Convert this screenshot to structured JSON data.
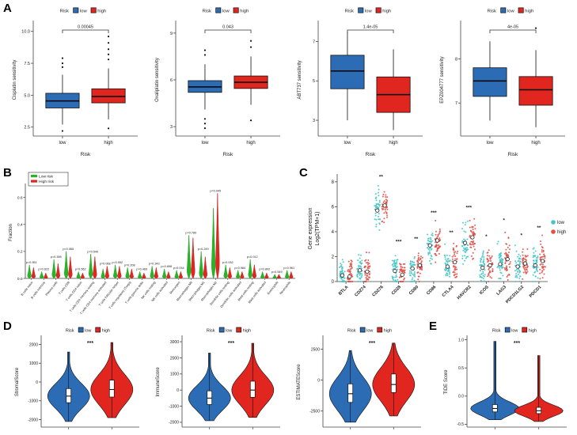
{
  "panels": {
    "a": "A",
    "b": "B",
    "c": "C",
    "d": "D",
    "e": "E"
  },
  "colors": {
    "blue": "#2c6cb5",
    "red": "#e0261f",
    "green": "#27b427",
    "teal": "#45c5c9",
    "red_pts": "#e05148"
  },
  "chart_data": [
    {
      "id": "cisplatin",
      "panel": "A",
      "type": "box",
      "legend_title": "Risk",
      "legend": [
        "low",
        "high"
      ],
      "ylabel": "Cisplatin sensitivity",
      "xlabel": "Risk",
      "pvalue": "0.00045",
      "ylim": [
        1.8,
        10.6
      ],
      "yticks": [
        2.5,
        5.0,
        7.5,
        10.0
      ],
      "ytick_labels": [
        "2.5",
        "5.0",
        "7.5",
        "10.0"
      ],
      "series": [
        {
          "name": "low",
          "q1": 4.0,
          "median": 4.55,
          "q3": 5.15,
          "whisker_low": 2.7,
          "whisker_high": 6.6,
          "outliers": [
            7.2,
            7.5,
            7.9,
            2.2
          ]
        },
        {
          "name": "high",
          "q1": 4.4,
          "median": 4.9,
          "q3": 5.5,
          "whisker_low": 3.1,
          "whisker_high": 7.1,
          "outliers": [
            7.8,
            8.2,
            8.6,
            9.1,
            9.6,
            2.4
          ]
        }
      ]
    },
    {
      "id": "oxaliplatin",
      "panel": "A",
      "type": "box",
      "legend_title": "Risk",
      "legend": [
        "low",
        "high"
      ],
      "ylabel": "Oxaliplatin sensitivity",
      "xlabel": "Risk",
      "pvalue": "0.043",
      "ylim": [
        2.4,
        9.6
      ],
      "yticks": [
        3,
        6,
        9
      ],
      "ytick_labels": [
        "3",
        "6",
        "9"
      ],
      "series": [
        {
          "name": "low",
          "q1": 5.2,
          "median": 5.55,
          "q3": 5.95,
          "whisker_low": 4.1,
          "whisker_high": 7.0,
          "outliers": [
            7.6,
            7.9,
            3.5,
            3.2,
            2.9
          ]
        },
        {
          "name": "high",
          "q1": 5.45,
          "median": 5.85,
          "q3": 6.25,
          "whisker_low": 4.4,
          "whisker_high": 7.5,
          "outliers": [
            8.1,
            8.5,
            3.4
          ]
        }
      ]
    },
    {
      "id": "abt737",
      "panel": "A",
      "type": "box",
      "legend_title": "Risk",
      "legend": [
        "low",
        "high"
      ],
      "ylabel": "ABT737 sensitivity",
      "xlabel": "Risk",
      "pvalue": "1.4e-05",
      "ylim": [
        2.2,
        7.9
      ],
      "yticks": [
        3,
        5,
        7
      ],
      "ytick_labels": [
        "3",
        "5",
        "7"
      ],
      "series": [
        {
          "name": "low",
          "q1": 4.6,
          "median": 5.5,
          "q3": 6.3,
          "whisker_low": 3.0,
          "whisker_high": 7.5,
          "outliers": []
        },
        {
          "name": "high",
          "q1": 3.4,
          "median": 4.3,
          "q3": 5.2,
          "whisker_low": 2.5,
          "whisker_high": 6.6,
          "outliers": []
        }
      ]
    },
    {
      "id": "epz004777",
      "panel": "A",
      "type": "box",
      "legend_title": "Risk",
      "legend": [
        "low",
        "high"
      ],
      "ylabel": "EPZ004777 sensitivity",
      "xlabel": "Risk",
      "pvalue": "4e-05",
      "ylim": [
        6.25,
        8.8
      ],
      "yticks": [
        7,
        8
      ],
      "ytick_labels": [
        "7",
        "8"
      ],
      "series": [
        {
          "name": "low",
          "q1": 7.15,
          "median": 7.5,
          "q3": 7.8,
          "whisker_low": 6.6,
          "whisker_high": 8.4,
          "outliers": []
        },
        {
          "name": "high",
          "q1": 6.95,
          "median": 7.3,
          "q3": 7.6,
          "whisker_low": 6.45,
          "whisker_high": 8.2,
          "outliers": [
            8.7
          ]
        }
      ]
    },
    {
      "id": "cibersort",
      "panel": "B",
      "type": "violin",
      "legend": [
        "Low risk",
        "High risk"
      ],
      "ylabel": "Fraction",
      "ylim": [
        0,
        0.68
      ],
      "yticks": [
        0,
        0.2,
        0.4,
        0.6
      ],
      "ytick_labels": [
        "0.0",
        "0.2",
        "0.4",
        "0.6"
      ],
      "categories": [
        "B cells naive",
        "B cells memory",
        "Plasma cells",
        "T cells CD8",
        "T cells CD4 naive",
        "T cells CD4 memory resting",
        "T cells CD4 memory activated",
        "T cells follicular helper",
        "T cells regulatory (Tregs)",
        "T cells gamma delta",
        "NK cells resting",
        "NK cells activated",
        "Monocytes",
        "Macrophages M0",
        "Macrophages M1",
        "Macrophages M2",
        "Dendritic cells resting",
        "Dendritic cells activated",
        "Mast cells resting",
        "Mast cells activated",
        "Eosinophils",
        "Neutrophils"
      ],
      "low_max": [
        0.1,
        0.05,
        0.14,
        0.2,
        0.05,
        0.18,
        0.07,
        0.1,
        0.08,
        0.05,
        0.09,
        0.07,
        0.06,
        0.32,
        0.2,
        0.52,
        0.1,
        0.06,
        0.14,
        0.05,
        0.03,
        0.06
      ],
      "high_max": [
        0.08,
        0.04,
        0.11,
        0.16,
        0.04,
        0.16,
        0.09,
        0.09,
        0.07,
        0.04,
        0.08,
        0.05,
        0.05,
        0.3,
        0.16,
        0.63,
        0.08,
        0.05,
        0.1,
        0.04,
        0.03,
        0.05
      ],
      "pvalues": [
        "p=0.951",
        "p=0.622",
        "p=0.398",
        "p=0.065",
        "p=0.562",
        "p=0.540",
        "p=0.068",
        "p=0.552",
        "p=0.208",
        "p=0.469",
        "p=0.343",
        "p=0.698",
        "p=0.034",
        "p=0.789",
        "p=0.249",
        "p=0.045",
        "p=0.032",
        "p=0.984",
        "p=0.012",
        "p=0.802",
        "p=0.549",
        "p=0.961"
      ]
    },
    {
      "id": "checkpoint",
      "panel": "C",
      "type": "scatter",
      "legend": [
        "low",
        "high"
      ],
      "ylabel_line1": "Gene expression",
      "ylabel_line2": "Log2(TPM+1)",
      "ylim": [
        0,
        8.5
      ],
      "yticks": [
        0,
        2,
        4,
        6,
        8
      ],
      "ytick_labels": [
        "0",
        "2",
        "4",
        "6",
        "8"
      ],
      "genes": [
        {
          "name": "BTLA",
          "sig": "",
          "low": {
            "median": 0.5,
            "sd": 0.6,
            "min": 0,
            "max": 2.6
          },
          "high": {
            "median": 0.4,
            "sd": 0.55,
            "min": 0,
            "max": 2.3
          }
        },
        {
          "name": "CD274",
          "sig": "",
          "low": {
            "median": 0.9,
            "sd": 0.6,
            "min": 0,
            "max": 3.0
          },
          "high": {
            "median": 0.8,
            "sd": 0.6,
            "min": 0,
            "max": 2.8
          }
        },
        {
          "name": "CD276",
          "sig": "**",
          "low": {
            "median": 5.7,
            "sd": 0.75,
            "min": 3.6,
            "max": 7.9
          },
          "high": {
            "median": 6.1,
            "sd": 0.7,
            "min": 4.2,
            "max": 8.1
          }
        },
        {
          "name": "CD28",
          "sig": "***",
          "low": {
            "median": 0.85,
            "sd": 0.6,
            "min": 0,
            "max": 2.9
          },
          "high": {
            "median": 0.55,
            "sd": 0.5,
            "min": 0,
            "max": 2.4
          }
        },
        {
          "name": "CD80",
          "sig": "**",
          "low": {
            "median": 1.05,
            "sd": 0.55,
            "min": 0,
            "max": 2.8
          },
          "high": {
            "median": 1.3,
            "sd": 0.6,
            "min": 0,
            "max": 3.1
          }
        },
        {
          "name": "CD86",
          "sig": "***",
          "low": {
            "median": 2.9,
            "sd": 0.7,
            "min": 1.0,
            "max": 4.9
          },
          "high": {
            "median": 3.3,
            "sd": 0.7,
            "min": 1.4,
            "max": 5.2
          }
        },
        {
          "name": "CTLA4",
          "sig": "**",
          "low": {
            "median": 1.2,
            "sd": 0.6,
            "min": 0,
            "max": 3.2
          },
          "high": {
            "median": 1.55,
            "sd": 0.65,
            "min": 0,
            "max": 3.6
          }
        },
        {
          "name": "HAVCR2",
          "sig": "***",
          "low": {
            "median": 3.1,
            "sd": 0.7,
            "min": 1.4,
            "max": 5.2
          },
          "high": {
            "median": 3.55,
            "sd": 0.7,
            "min": 1.8,
            "max": 5.6
          }
        },
        {
          "name": "ICOS",
          "sig": "*",
          "low": {
            "median": 1.1,
            "sd": 0.6,
            "min": 0,
            "max": 3.1
          },
          "high": {
            "median": 1.3,
            "sd": 0.6,
            "min": 0,
            "max": 3.3
          }
        },
        {
          "name": "LAG3",
          "sig": "*",
          "low": {
            "median": 1.4,
            "sd": 0.8,
            "min": 0,
            "max": 4.2
          },
          "high": {
            "median": 1.8,
            "sd": 0.85,
            "min": 0,
            "max": 4.6
          }
        },
        {
          "name": "PDCD1LG2",
          "sig": "*",
          "low": {
            "median": 1.2,
            "sd": 0.6,
            "min": 0,
            "max": 3.2
          },
          "high": {
            "median": 1.45,
            "sd": 0.6,
            "min": 0,
            "max": 3.4
          }
        },
        {
          "name": "PDCD1",
          "sig": "**",
          "low": {
            "median": 1.3,
            "sd": 0.7,
            "min": 0,
            "max": 3.7
          },
          "high": {
            "median": 1.65,
            "sd": 0.7,
            "min": 0,
            "max": 4.0
          }
        }
      ]
    },
    {
      "id": "stromal",
      "panel": "D",
      "type": "violin-box",
      "legend_title": "Risk",
      "legend": [
        "low",
        "high"
      ],
      "ylabel": "StromalScore",
      "sig": "***",
      "ylim": [
        -2400,
        2400
      ],
      "yticks": [
        -2000,
        -1000,
        0,
        1000,
        2000
      ],
      "ytick_labels": [
        "-2000",
        "-1000",
        "0",
        "1000",
        "2000"
      ],
      "series": [
        {
          "name": "low",
          "lo": -2100,
          "q1": -1100,
          "median": -750,
          "q3": -350,
          "hi": 1600
        },
        {
          "name": "high",
          "lo": -1900,
          "q1": -800,
          "median": -400,
          "q3": 100,
          "hi": 2100
        }
      ]
    },
    {
      "id": "immune",
      "panel": "D",
      "type": "violin-box",
      "legend_title": "Risk",
      "legend": [
        "low",
        "high"
      ],
      "ylabel": "ImmuneScore",
      "sig": "***",
      "ylim": [
        -2300,
        3300
      ],
      "yticks": [
        -2000,
        -1000,
        0,
        1000,
        2000,
        3000
      ],
      "ytick_labels": [
        "-2000",
        "-1000",
        "0",
        "1000",
        "2000",
        "3000"
      ],
      "series": [
        {
          "name": "low",
          "lo": -1900,
          "q1": -900,
          "median": -500,
          "q3": -50,
          "hi": 2300
        },
        {
          "name": "high",
          "lo": -1700,
          "q1": -450,
          "median": 0,
          "q3": 550,
          "hi": 2900
        }
      ]
    },
    {
      "id": "estimate",
      "panel": "D",
      "type": "violin-box",
      "legend_title": "Risk",
      "legend": [
        "low",
        "high"
      ],
      "ylabel": "ESTIMATEScore",
      "sig": "***",
      "ylim": [
        -3800,
        3500
      ],
      "yticks": [
        -2500,
        0,
        2500
      ],
      "ytick_labels": [
        "-2500",
        "0",
        "2500"
      ],
      "series": [
        {
          "name": "low",
          "lo": -3400,
          "q1": -1800,
          "median": -1100,
          "q3": -300,
          "hi": 2400
        },
        {
          "name": "high",
          "lo": -2900,
          "q1": -1000,
          "median": -350,
          "q3": 500,
          "hi": 3000
        }
      ]
    },
    {
      "id": "tide",
      "panel": "E",
      "type": "violin-box",
      "legend_title": "Risk",
      "legend": [
        "low",
        "high"
      ],
      "ylabel": "TIDE Score",
      "sig": "***",
      "ylim": [
        -0.55,
        1.05
      ],
      "yticks": [
        -0.5,
        0,
        0.5,
        1
      ],
      "ytick_labels": [
        "-0.5",
        "0.0",
        "0.5",
        "1.0"
      ],
      "series": [
        {
          "name": "low",
          "lo": -0.42,
          "q1": -0.28,
          "median": -0.22,
          "q3": -0.15,
          "hi": 0.97
        },
        {
          "name": "high",
          "lo": -0.45,
          "q1": -0.31,
          "median": -0.26,
          "q3": -0.2,
          "hi": 0.72
        }
      ]
    }
  ]
}
